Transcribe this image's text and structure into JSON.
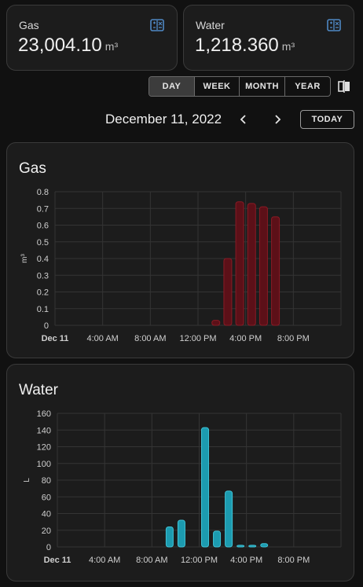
{
  "stats": [
    {
      "title": "Gas",
      "value": "23,004.10",
      "unit": "m³"
    },
    {
      "title": "Water",
      "value": "1,218.360",
      "unit": "m³"
    }
  ],
  "periods": [
    "DAY",
    "WEEK",
    "MONTH",
    "YEAR"
  ],
  "active_period": "DAY",
  "date": "December 11, 2022",
  "today_label": "TODAY",
  "icons": {
    "stat": "energy-meter-icon",
    "compare": "compare-icon",
    "prev": "chevron-left-icon",
    "next": "chevron-right-icon"
  },
  "colors": {
    "gas_fill": "#5c1018",
    "gas_stroke": "#8a1a24",
    "water_fill": "#1c9bb0",
    "water_stroke": "#3fc3d6"
  },
  "chart_data": [
    {
      "type": "bar",
      "title": "Gas",
      "ylabel": "m³",
      "ylim": [
        0,
        0.8
      ],
      "yticks": [
        "0",
        "0.1",
        "0.2",
        "0.3",
        "0.4",
        "0.5",
        "0.6",
        "0.7",
        "0.8"
      ],
      "xticks": [
        "Dec 11",
        "4:00 AM",
        "8:00 AM",
        "12:00 PM",
        "4:00 PM",
        "8:00 PM"
      ],
      "x_hours": [
        13,
        14,
        15,
        16,
        17,
        18
      ],
      "values": [
        0.03,
        0.4,
        0.74,
        0.73,
        0.71,
        0.65
      ]
    },
    {
      "type": "bar",
      "title": "Water",
      "ylabel": "L",
      "ylim": [
        0,
        160
      ],
      "yticks": [
        "0",
        "20",
        "40",
        "60",
        "80",
        "100",
        "120",
        "140",
        "160"
      ],
      "xticks": [
        "Dec 11",
        "4:00 AM",
        "8:00 AM",
        "12:00 PM",
        "4:00 PM",
        "8:00 PM"
      ],
      "x_hours": [
        9,
        10,
        12,
        13,
        14,
        15,
        16,
        17
      ],
      "values": [
        24,
        32,
        143,
        19,
        67,
        2,
        2,
        4
      ]
    }
  ]
}
